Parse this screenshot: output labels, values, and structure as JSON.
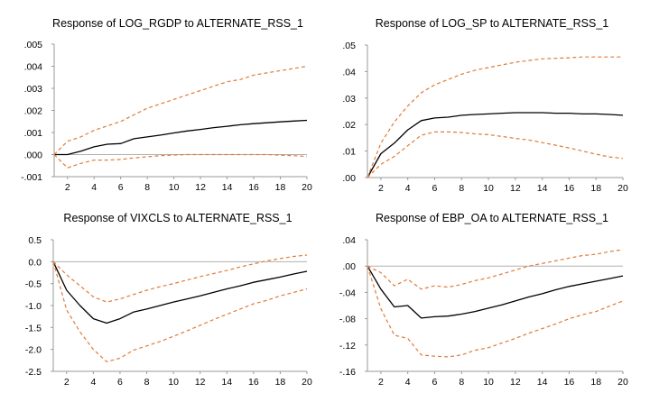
{
  "colors": {
    "impulse": "#000000",
    "band": "#E07B39",
    "zero_line": "#b0b0b0",
    "axis": "#000000",
    "grid": "#e6e6e6",
    "text": "#000000"
  },
  "chart_data": [
    {
      "type": "line",
      "title": "Response of LOG_RGDP to ALTERNATE_RSS_1",
      "x": [
        1,
        2,
        3,
        4,
        5,
        6,
        7,
        8,
        9,
        10,
        11,
        12,
        13,
        14,
        15,
        16,
        17,
        18,
        19,
        20
      ],
      "ylim": [
        -0.001,
        0.005
      ],
      "yticks": [
        -0.001,
        0.0,
        0.001,
        0.002,
        0.003,
        0.004,
        0.005
      ],
      "ytick_labels": [
        "-.001",
        ".000",
        ".001",
        ".002",
        ".003",
        ".004",
        ".005"
      ],
      "xticks": [
        2,
        4,
        6,
        8,
        10,
        12,
        14,
        16,
        18,
        20
      ],
      "xtick_labels": [
        "2",
        "4",
        "6",
        "8",
        "10",
        "12",
        "14",
        "16",
        "18",
        "20"
      ],
      "series": [
        {
          "name": "response",
          "style": "solid",
          "values": [
            0.0,
            0.0,
            0.00015,
            0.00035,
            0.00047,
            0.0005,
            0.00072,
            0.0008,
            0.00088,
            0.00098,
            0.00107,
            0.00114,
            0.00122,
            0.00128,
            0.00135,
            0.0014,
            0.00144,
            0.00148,
            0.00152,
            0.00155
          ]
        },
        {
          "name": "upper band",
          "style": "dashed",
          "values": [
            0.0,
            0.0006,
            0.0008,
            0.0011,
            0.0013,
            0.0015,
            0.0018,
            0.0021,
            0.0023,
            0.0025,
            0.0027,
            0.0029,
            0.0031,
            0.0033,
            0.0034,
            0.0036,
            0.0037,
            0.0038,
            0.0039,
            0.004
          ]
        },
        {
          "name": "lower band",
          "style": "dashed",
          "values": [
            0.0,
            -0.0006,
            -0.0004,
            -0.00025,
            -0.00025,
            -0.00022,
            -0.00015,
            -0.0001,
            -5e-05,
            -2e-05,
            0.0,
            0.0,
            0.0,
            0.0,
            0.0,
            0.0,
            0.0,
            -3e-05,
            -5e-05,
            -8e-05
          ]
        }
      ]
    },
    {
      "type": "line",
      "title": "Response of LOG_SP to ALTERNATE_RSS_1",
      "x": [
        1,
        2,
        3,
        4,
        5,
        6,
        7,
        8,
        9,
        10,
        11,
        12,
        13,
        14,
        15,
        16,
        17,
        18,
        19,
        20
      ],
      "ylim": [
        0.0,
        0.05
      ],
      "yticks": [
        0.0,
        0.01,
        0.02,
        0.03,
        0.04,
        0.05
      ],
      "ytick_labels": [
        ".00",
        ".01",
        ".02",
        ".03",
        ".04",
        ".05"
      ],
      "xticks": [
        2,
        4,
        6,
        8,
        10,
        12,
        14,
        16,
        18,
        20
      ],
      "xtick_labels": [
        "2",
        "4",
        "6",
        "8",
        "10",
        "12",
        "14",
        "16",
        "18",
        "20"
      ],
      "series": [
        {
          "name": "response",
          "style": "solid",
          "values": [
            0.0,
            0.009,
            0.013,
            0.018,
            0.0215,
            0.0225,
            0.0228,
            0.0235,
            0.0238,
            0.024,
            0.0243,
            0.0245,
            0.0245,
            0.0245,
            0.0243,
            0.0243,
            0.024,
            0.024,
            0.0238,
            0.0235
          ]
        },
        {
          "name": "upper band",
          "style": "dashed",
          "values": [
            0.0,
            0.013,
            0.021,
            0.027,
            0.032,
            0.035,
            0.037,
            0.039,
            0.0405,
            0.0415,
            0.0425,
            0.0435,
            0.0442,
            0.0448,
            0.045,
            0.0452,
            0.0455,
            0.0455,
            0.0455,
            0.0455
          ]
        },
        {
          "name": "lower band",
          "style": "dashed",
          "values": [
            0.0,
            0.005,
            0.008,
            0.012,
            0.016,
            0.0172,
            0.0172,
            0.017,
            0.0165,
            0.0162,
            0.0155,
            0.0148,
            0.0142,
            0.0132,
            0.0122,
            0.0112,
            0.01,
            0.0088,
            0.0078,
            0.0072
          ]
        }
      ]
    },
    {
      "type": "line",
      "title": "Response of VIXCLS to ALTERNATE_RSS_1",
      "x": [
        1,
        2,
        3,
        4,
        5,
        6,
        7,
        8,
        9,
        10,
        11,
        12,
        13,
        14,
        15,
        16,
        17,
        18,
        19,
        20
      ],
      "ylim": [
        -2.5,
        0.5
      ],
      "yticks": [
        -2.5,
        -2.0,
        -1.5,
        -1.0,
        -0.5,
        0.0,
        0.5
      ],
      "ytick_labels": [
        "-2.5",
        "-2.0",
        "-1.5",
        "-1.0",
        "-0.5",
        "0.0",
        "0.5"
      ],
      "xticks": [
        2,
        4,
        6,
        8,
        10,
        12,
        14,
        16,
        18,
        20
      ],
      "xtick_labels": [
        "2",
        "4",
        "6",
        "8",
        "10",
        "12",
        "14",
        "16",
        "18",
        "20"
      ],
      "series": [
        {
          "name": "response",
          "style": "solid",
          "values": [
            0.0,
            -0.65,
            -1.0,
            -1.3,
            -1.4,
            -1.3,
            -1.15,
            -1.08,
            -1.0,
            -0.92,
            -0.85,
            -0.78,
            -0.7,
            -0.62,
            -0.55,
            -0.47,
            -0.41,
            -0.35,
            -0.28,
            -0.22
          ]
        },
        {
          "name": "upper band",
          "style": "dashed",
          "values": [
            0.0,
            -0.3,
            -0.55,
            -0.8,
            -0.92,
            -0.85,
            -0.75,
            -0.65,
            -0.57,
            -0.5,
            -0.42,
            -0.34,
            -0.27,
            -0.2,
            -0.12,
            -0.05,
            0.02,
            0.07,
            0.12,
            0.15
          ]
        },
        {
          "name": "lower band",
          "style": "dashed",
          "values": [
            0.0,
            -1.1,
            -1.6,
            -2.0,
            -2.28,
            -2.2,
            -2.02,
            -1.92,
            -1.82,
            -1.7,
            -1.58,
            -1.45,
            -1.32,
            -1.2,
            -1.08,
            -0.96,
            -0.88,
            -0.78,
            -0.7,
            -0.62
          ]
        }
      ]
    },
    {
      "type": "line",
      "title": "Response of EBP_OA to ALTERNATE_RSS_1",
      "x": [
        1,
        2,
        3,
        4,
        5,
        6,
        7,
        8,
        9,
        10,
        11,
        12,
        13,
        14,
        15,
        16,
        17,
        18,
        19,
        20
      ],
      "ylim": [
        -0.16,
        0.04
      ],
      "yticks": [
        -0.16,
        -0.12,
        -0.08,
        -0.04,
        0.0,
        0.04
      ],
      "ytick_labels": [
        "-.16",
        "-.12",
        "-.08",
        "-.04",
        ".00",
        ".04"
      ],
      "xticks": [
        2,
        4,
        6,
        8,
        10,
        12,
        14,
        16,
        18,
        20
      ],
      "xtick_labels": [
        "2",
        "4",
        "6",
        "8",
        "10",
        "12",
        "14",
        "16",
        "18",
        "20"
      ],
      "series": [
        {
          "name": "response",
          "style": "solid",
          "values": [
            0.0,
            -0.035,
            -0.062,
            -0.06,
            -0.079,
            -0.077,
            -0.076,
            -0.073,
            -0.069,
            -0.064,
            -0.059,
            -0.053,
            -0.047,
            -0.042,
            -0.036,
            -0.031,
            -0.027,
            -0.023,
            -0.019,
            -0.015
          ]
        },
        {
          "name": "upper band",
          "style": "dashed",
          "values": [
            0.0,
            -0.01,
            -0.03,
            -0.02,
            -0.035,
            -0.03,
            -0.032,
            -0.028,
            -0.022,
            -0.018,
            -0.012,
            -0.006,
            0.0,
            0.004,
            0.008,
            0.012,
            0.016,
            0.018,
            0.022,
            0.025
          ]
        },
        {
          "name": "lower band",
          "style": "dashed",
          "values": [
            0.0,
            -0.065,
            -0.105,
            -0.11,
            -0.135,
            -0.137,
            -0.138,
            -0.135,
            -0.128,
            -0.124,
            -0.117,
            -0.11,
            -0.102,
            -0.095,
            -0.088,
            -0.08,
            -0.074,
            -0.069,
            -0.061,
            -0.053
          ]
        }
      ]
    }
  ]
}
